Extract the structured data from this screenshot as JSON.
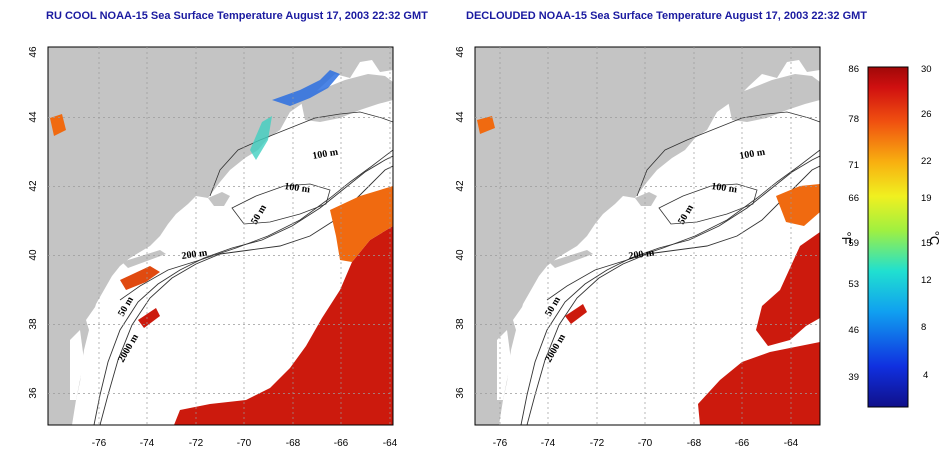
{
  "titles": {
    "left": "RU COOL NOAA-15 Sea Surface Temperature August 17, 2003 22:32 GMT",
    "right": "DECLOUDED NOAA-15 Sea Surface Temperature August 17, 2003 22:32 GMT"
  },
  "axes": {
    "lat_ticks": [
      "46",
      "44",
      "42",
      "40",
      "38",
      "36"
    ],
    "lon_ticks": [
      "-76",
      "-74",
      "-72",
      "-70",
      "-68",
      "-66",
      "-64"
    ]
  },
  "isobaths": [
    "100 m",
    "100 m",
    "50 m",
    "200 m",
    "50 m",
    "2000 m"
  ],
  "colorbar": {
    "fahrenheit_label": "°F",
    "celsius_label": "°C",
    "fahrenheit_ticks": [
      "86",
      "78",
      "71",
      "66",
      "59",
      "53",
      "46",
      "39"
    ],
    "celsius_ticks": [
      "30",
      "26",
      "22",
      "19",
      "15",
      "12",
      "8",
      "4"
    ]
  },
  "colors": {
    "land": "#c4c4c4",
    "water": "#ffffff",
    "title": "#1a1aa0",
    "warm": "#cc1a0d",
    "cold": "#1f3fd6"
  }
}
